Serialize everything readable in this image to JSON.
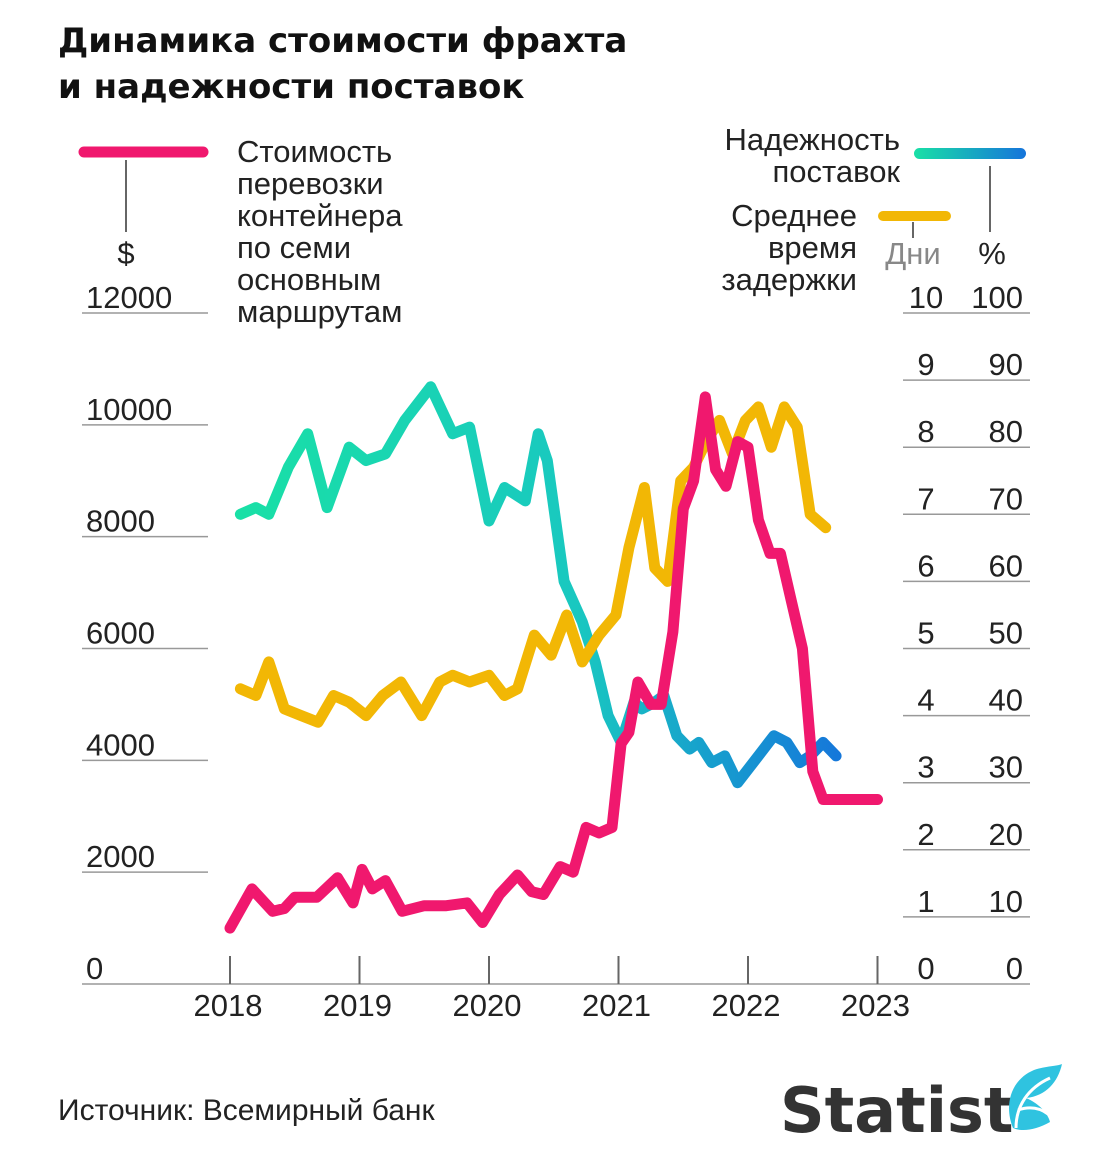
{
  "title": {
    "line1": "Динамика стоимости фрахта",
    "line2": "и надежности поставок"
  },
  "legend": {
    "cost": {
      "lines": [
        "Стоимость",
        "перевозки",
        "контейнера",
        "по семи",
        "основным",
        "маршрутам"
      ],
      "unit": "$",
      "color": "#f0186e"
    },
    "reliability": {
      "lines": [
        "Надежность",
        "поставок"
      ],
      "unit": "%",
      "color_start": "#19e0a6",
      "color_end": "#1574db"
    },
    "delay": {
      "lines": [
        "Среднее",
        "время",
        "задержки"
      ],
      "unit": "Дни",
      "color": "#f2b705"
    }
  },
  "source": "Источник: Всемирный банк",
  "logo": {
    "text": "Statist",
    "icon": "statist-leaf-icon"
  },
  "chart_data": {
    "type": "line",
    "x_ticks": [
      "2018",
      "2019",
      "2020",
      "2021",
      "2022",
      "2023"
    ],
    "left_axis": {
      "ticks": [
        "0",
        "2000",
        "4000",
        "6000",
        "8000",
        "10000",
        "12000"
      ],
      "range": [
        0,
        12000
      ]
    },
    "right_axis_days": {
      "ticks": [
        "0",
        "1",
        "2",
        "3",
        "4",
        "5",
        "6",
        "7",
        "8",
        "9",
        "10"
      ],
      "range": [
        0,
        10
      ]
    },
    "right_axis_percent": {
      "ticks": [
        "0",
        "10",
        "20",
        "30",
        "40",
        "50",
        "60",
        "70",
        "80",
        "90",
        "100"
      ],
      "range": [
        0,
        100
      ]
    },
    "series": [
      {
        "name": "Стоимость перевозки контейнера по семи основным маршрутам",
        "axis": "left",
        "x": [
          2018.0,
          2018.17,
          2018.33,
          2018.42,
          2018.5,
          2018.67,
          2018.83,
          2018.95,
          2019.02,
          2019.1,
          2019.2,
          2019.33,
          2019.5,
          2019.67,
          2019.83,
          2019.95,
          2020.08,
          2020.22,
          2020.33,
          2020.42,
          2020.55,
          2020.65,
          2020.75,
          2020.85,
          2020.95,
          2021.02,
          2021.08,
          2021.15,
          2021.25,
          2021.33,
          2021.42,
          2021.5,
          2021.58,
          2021.67,
          2021.75,
          2021.83,
          2021.92,
          2022.0,
          2022.08,
          2022.17,
          2022.25,
          2022.33,
          2022.42,
          2022.5,
          2022.58,
          2022.67,
          2022.75,
          2022.83,
          2022.92,
          2023.0
        ],
        "y": [
          1000,
          1700,
          1300,
          1350,
          1550,
          1550,
          1900,
          1450,
          2050,
          1700,
          1850,
          1300,
          1400,
          1400,
          1450,
          1100,
          1600,
          1950,
          1650,
          1600,
          2100,
          2000,
          2800,
          2700,
          2800,
          4300,
          4500,
          5400,
          5000,
          5000,
          6300,
          8500,
          9000,
          10500,
          9200,
          8900,
          9700,
          9600,
          8300,
          7700,
          7700,
          6900,
          6000,
          3800,
          3300,
          3300,
          3300,
          3300,
          3300,
          3300
        ]
      },
      {
        "name": "Надежность поставок",
        "axis": "right_percent",
        "x": [
          2018.08,
          2018.2,
          2018.3,
          2018.45,
          2018.6,
          2018.75,
          2018.92,
          2019.05,
          2019.2,
          2019.35,
          2019.55,
          2019.72,
          2019.85,
          2020.0,
          2020.12,
          2020.28,
          2020.38,
          2020.45,
          2020.58,
          2020.72,
          2020.82,
          2020.92,
          2021.02,
          2021.12,
          2021.18,
          2021.28,
          2021.35,
          2021.45,
          2021.55,
          2021.62,
          2021.72,
          2021.82,
          2021.92,
          2022.08,
          2022.2,
          2022.3,
          2022.4,
          2022.48,
          2022.58,
          2022.68
        ],
        "y": [
          70,
          71,
          70,
          77,
          82,
          71,
          80,
          78,
          79,
          84,
          89,
          82,
          83,
          69,
          74,
          72,
          82,
          78,
          60,
          54,
          48,
          40,
          36,
          42,
          41,
          42,
          43,
          37,
          35,
          36,
          33,
          34,
          30,
          34,
          37,
          36,
          33,
          34,
          36,
          34
        ]
      },
      {
        "name": "Среднее время задержки",
        "axis": "right_days",
        "x": [
          2018.08,
          2018.2,
          2018.3,
          2018.42,
          2018.55,
          2018.68,
          2018.8,
          2018.92,
          2019.05,
          2019.18,
          2019.32,
          2019.48,
          2019.62,
          2019.72,
          2019.85,
          2020.0,
          2020.12,
          2020.22,
          2020.35,
          2020.48,
          2020.6,
          2020.72,
          2020.85,
          2020.98,
          2021.08,
          2021.2,
          2021.28,
          2021.38,
          2021.48,
          2021.58,
          2021.68,
          2021.78,
          2021.88,
          2021.98,
          2022.08,
          2022.18,
          2022.28,
          2022.38,
          2022.48,
          2022.6
        ],
        "y": [
          4.4,
          4.3,
          4.8,
          4.1,
          4.0,
          3.9,
          4.3,
          4.2,
          4.0,
          4.3,
          4.5,
          4.0,
          4.5,
          4.6,
          4.5,
          4.6,
          4.3,
          4.4,
          5.2,
          4.9,
          5.5,
          4.8,
          5.2,
          5.5,
          6.5,
          7.4,
          6.2,
          6.0,
          7.5,
          7.7,
          8.1,
          8.4,
          7.9,
          8.4,
          8.6,
          8.0,
          8.6,
          8.3,
          7.0,
          6.8
        ]
      }
    ]
  }
}
